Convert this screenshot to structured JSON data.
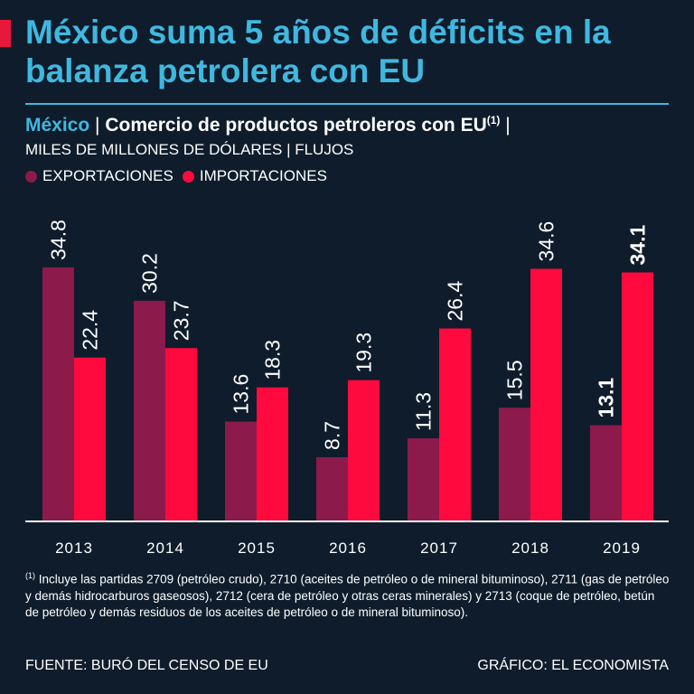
{
  "header": {
    "title": "México suma 5 años de déficits en la balanza petrolera con EU",
    "subtitle_country": "México",
    "subtitle_separator": "|",
    "subtitle_text": "Comercio de productos petroleros con EU",
    "subtitle_note_marker": "(1)",
    "units": "MILES DE MILLONES DE DÓLARES | FLUJOS"
  },
  "legend": {
    "exports_label": "EXPORTACIONES",
    "imports_label": "IMPORTACIONES"
  },
  "colors": {
    "background": "#0f1c2b",
    "title": "#3fb8e0",
    "exports": "#8c1a4b",
    "imports": "#ff0a3e",
    "axis": "#ffffff"
  },
  "chart_data": {
    "type": "bar",
    "title": "Comercio de productos petroleros con EU",
    "xlabel": "",
    "ylabel": "MILES DE MILLONES DE DÓLARES",
    "categories": [
      "2013",
      "2014",
      "2015",
      "2016",
      "2017",
      "2018",
      "2019"
    ],
    "series": [
      {
        "name": "EXPORTACIONES",
        "values": [
          34.8,
          30.2,
          13.6,
          8.7,
          11.3,
          15.5,
          13.1
        ]
      },
      {
        "name": "IMPORTACIONES",
        "values": [
          22.4,
          23.7,
          18.3,
          19.3,
          26.4,
          34.6,
          34.1
        ]
      }
    ],
    "ylim": [
      0,
      35
    ],
    "grid": false,
    "legend_position": "top-left",
    "highlight_category": "2019"
  },
  "footer": {
    "footnote_marker": "(1)",
    "footnote_text": "Incluye las partidas 2709 (petróleo crudo), 2710 (aceites de petróleo o de mineral bituminoso), 2711 (gas de petróleo y demás hidrocarburos gaseosos), 2712 (cera de petróleo y otras ceras minerales) y 2713 (coque de petróleo, betún de petróleo y demás residuos de los aceites de petróleo o de mineral bituminoso).",
    "source": "FUENTE: BURÓ DEL CENSO DE EU",
    "credit": "GRÁFICO: EL ECONOMISTA"
  }
}
